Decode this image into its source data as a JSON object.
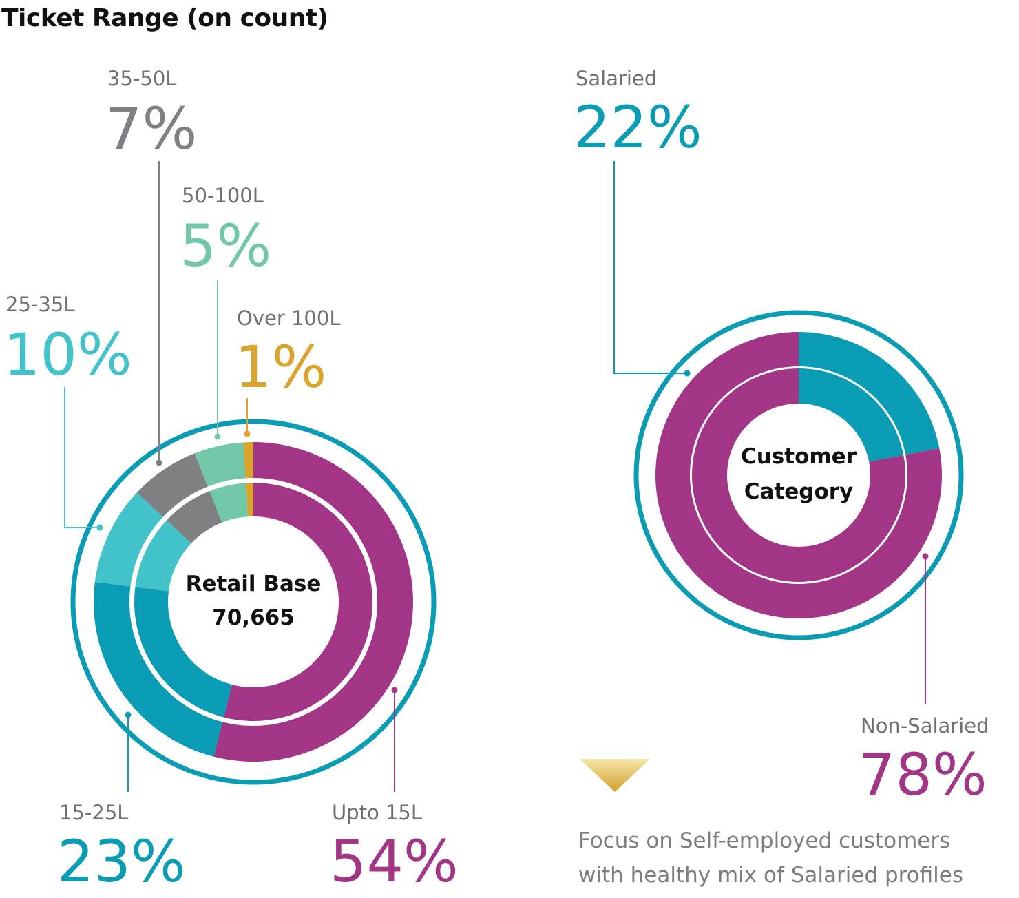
{
  "title": "Ticket Range (on count)",
  "chart_data": [
    {
      "type": "pie",
      "variant": "donut",
      "center_label": [
        "Retail Base",
        "70,665"
      ],
      "categories": [
        "Upto 15L",
        "15-25L",
        "25-35L",
        "35-50L",
        "50-100L",
        "Over 100L"
      ],
      "values": [
        54,
        23,
        10,
        7,
        5,
        1
      ],
      "value_labels": [
        "54%",
        "23%",
        "10%",
        "7%",
        "5%",
        "1%"
      ],
      "unit": "%",
      "colors": [
        "#a33587",
        "#0a9bb5",
        "#41c3c9",
        "#7f8083",
        "#72c7a6",
        "#dba42c"
      ]
    },
    {
      "type": "pie",
      "variant": "donut",
      "center_label": [
        "Customer",
        "Category"
      ],
      "categories": [
        "Salaried",
        "Non-Salaried"
      ],
      "values": [
        22,
        78
      ],
      "value_labels": [
        "22%",
        "78%"
      ],
      "unit": "%",
      "colors": [
        "#0a9bb5",
        "#a33587"
      ]
    }
  ],
  "footnote": {
    "line1": "Focus on Self-employed customers",
    "line2": "with healthy mix of Salaried profiles"
  },
  "colors": {
    "outer_ring": "#0a9bb5",
    "arrow_top": "#f6e6a8",
    "arrow_bottom": "#d0a02a",
    "footnote_text": "#7a7d82"
  }
}
